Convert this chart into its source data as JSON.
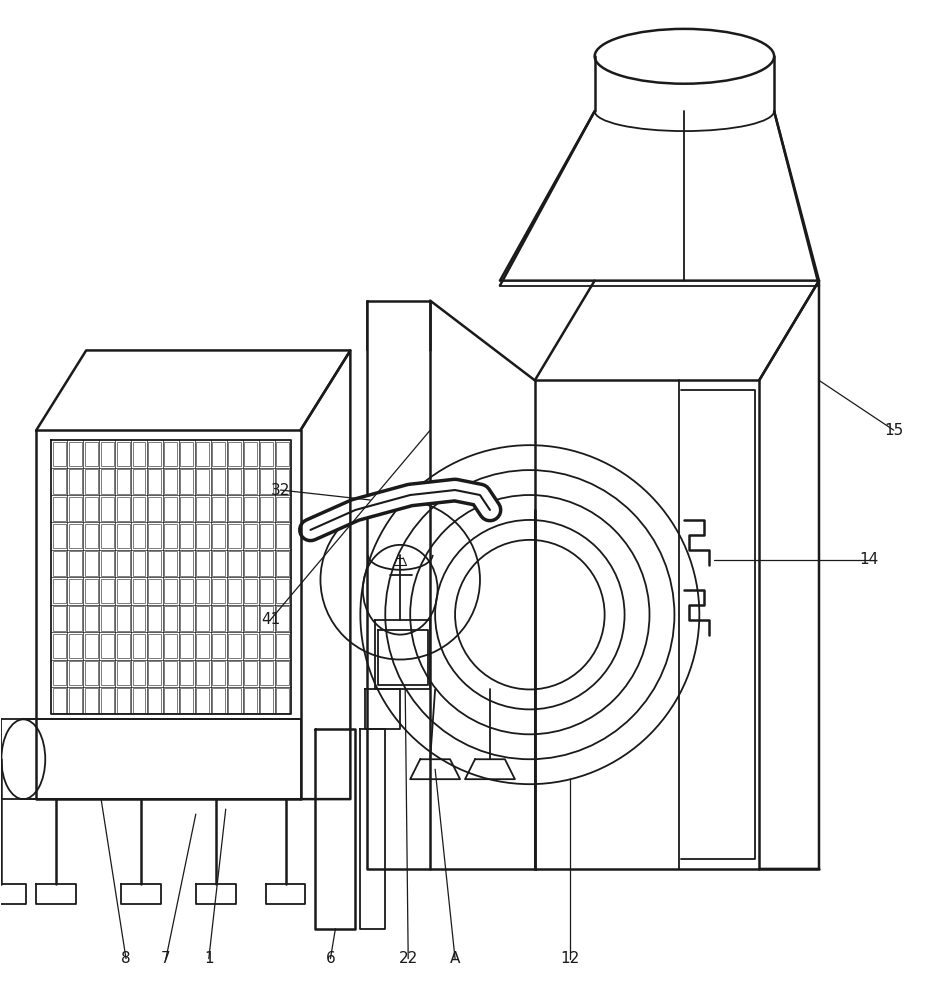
{
  "bg_color": "#ffffff",
  "lc": "#1a1a1a",
  "lw": 1.3,
  "lw2": 1.8,
  "fig_w": 9.52,
  "fig_h": 10.0
}
